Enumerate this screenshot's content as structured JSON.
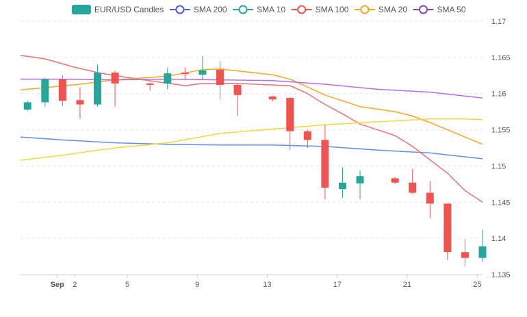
{
  "chart_data": {
    "type": "candlestick",
    "title": "",
    "xlabel": "",
    "ylabel": "",
    "ylim": [
      1.135,
      1.17
    ],
    "y_ticks": [
      "1.17",
      "1.165",
      "1.16",
      "1.155",
      "1.15",
      "1.145",
      "1.14",
      "1.135"
    ],
    "y_tick_values": [
      1.17,
      1.165,
      1.16,
      1.155,
      1.15,
      1.145,
      1.14,
      1.135
    ],
    "x_ticks": [
      {
        "label": "Sep",
        "day": 1,
        "bold": true
      },
      {
        "label": "2",
        "day": 2,
        "bold": false
      },
      {
        "label": "5",
        "day": 5,
        "bold": false
      },
      {
        "label": "9",
        "day": 9,
        "bold": false
      },
      {
        "label": "13",
        "day": 13,
        "bold": false
      },
      {
        "label": "17",
        "day": 17,
        "bold": false
      },
      {
        "label": "21",
        "day": 21,
        "bold": false
      },
      {
        "label": "25",
        "day": 25,
        "bold": false
      }
    ],
    "x_range_days": [
      -1.1,
      25.3
    ],
    "grid": "horizontal-dashed",
    "legend_position": "top",
    "colors": {
      "up": "#26a69a",
      "down": "#ef5350",
      "sma200": "#5b8ff0",
      "sma10": "#f08080",
      "sma100": "#e91e63",
      "sma20": "#f5a623",
      "sma50": "#b36bf5"
    },
    "legend": [
      {
        "key": "candles",
        "label": "EUR/USD Candles",
        "color": "#26a69a",
        "marker": "box"
      },
      {
        "key": "sma200",
        "label": "SMA 200",
        "color": "#4a5de8",
        "marker": "circle"
      },
      {
        "key": "sma10",
        "label": "SMA 10",
        "color": "#26a69a",
        "marker": "circle"
      },
      {
        "key": "sma100",
        "label": "SMA 100",
        "color": "#ef5350",
        "marker": "circle"
      },
      {
        "key": "sma20",
        "label": "SMA 20",
        "color": "#f5a623",
        "marker": "circle"
      },
      {
        "key": "sma50",
        "label": "SMA 50",
        "color": "#8e44ad",
        "marker": "circle"
      }
    ],
    "candles": [
      {
        "day": -0.7,
        "open": 1.1578,
        "high": 1.159,
        "low": 1.1576,
        "close": 1.1588
      },
      {
        "day": 0.3,
        "open": 1.1588,
        "high": 1.1622,
        "low": 1.1582,
        "close": 1.162
      },
      {
        "day": 1.3,
        "open": 1.162,
        "high": 1.1625,
        "low": 1.1583,
        "close": 1.159
      },
      {
        "day": 2.3,
        "open": 1.1591,
        "high": 1.1609,
        "low": 1.1565,
        "close": 1.1585
      },
      {
        "day": 3.3,
        "open": 1.1585,
        "high": 1.164,
        "low": 1.1582,
        "close": 1.1629
      },
      {
        "day": 4.3,
        "open": 1.1629,
        "high": 1.1632,
        "low": 1.1582,
        "close": 1.1614
      },
      {
        "day": 6.3,
        "open": 1.1614,
        "high": 1.1615,
        "low": 1.1604,
        "close": 1.1612
      },
      {
        "day": 7.3,
        "open": 1.1614,
        "high": 1.1636,
        "low": 1.1606,
        "close": 1.1628
      },
      {
        "day": 8.3,
        "open": 1.1629,
        "high": 1.1636,
        "low": 1.1619,
        "close": 1.1627
      },
      {
        "day": 9.3,
        "open": 1.1626,
        "high": 1.1652,
        "low": 1.162,
        "close": 1.1632
      },
      {
        "day": 10.3,
        "open": 1.1633,
        "high": 1.1645,
        "low": 1.1592,
        "close": 1.1612
      },
      {
        "day": 11.3,
        "open": 1.1612,
        "high": 1.1614,
        "low": 1.1569,
        "close": 1.1598
      },
      {
        "day": 13.3,
        "open": 1.1596,
        "high": 1.1597,
        "low": 1.1589,
        "close": 1.1592
      },
      {
        "day": 14.3,
        "open": 1.1594,
        "high": 1.1595,
        "low": 1.1522,
        "close": 1.1548
      },
      {
        "day": 15.3,
        "open": 1.1548,
        "high": 1.155,
        "low": 1.1525,
        "close": 1.1536
      },
      {
        "day": 16.3,
        "open": 1.1536,
        "high": 1.1557,
        "low": 1.1454,
        "close": 1.147
      },
      {
        "day": 17.3,
        "open": 1.1468,
        "high": 1.1498,
        "low": 1.1456,
        "close": 1.1477
      },
      {
        "day": 18.3,
        "open": 1.1476,
        "high": 1.1494,
        "low": 1.1454,
        "close": 1.1486
      },
      {
        "day": 20.3,
        "open": 1.1483,
        "high": 1.1485,
        "low": 1.1475,
        "close": 1.1477
      },
      {
        "day": 21.3,
        "open": 1.1477,
        "high": 1.1496,
        "low": 1.1461,
        "close": 1.1463
      },
      {
        "day": 22.3,
        "open": 1.1463,
        "high": 1.1479,
        "low": 1.1428,
        "close": 1.1448
      },
      {
        "day": 23.3,
        "open": 1.1448,
        "high": 1.1448,
        "low": 1.137,
        "close": 1.1381
      },
      {
        "day": 24.3,
        "open": 1.1381,
        "high": 1.1399,
        "low": 1.1361,
        "close": 1.1373
      },
      {
        "day": 25.3,
        "open": 1.1373,
        "high": 1.1412,
        "low": 1.1368,
        "close": 1.1389
      }
    ],
    "series": [
      {
        "key": "sma200",
        "color": "#5b8ff0",
        "x": [
          -1.1,
          1.3,
          4.3,
          7.3,
          10.3,
          13.3,
          16.3,
          19.3,
          22.3,
          25.3
        ],
        "values": [
          1.154,
          1.1536,
          1.1532,
          1.153,
          1.1529,
          1.1529,
          1.1527,
          1.1522,
          1.1518,
          1.151
        ]
      },
      {
        "key": "sma100",
        "color": "#f07070",
        "x": [
          -1.1,
          0.3,
          1.9,
          3.5,
          5.9,
          8.3,
          9.3,
          11.3,
          14.3,
          15.3,
          16.3,
          17.3,
          18.3,
          20.3,
          21.3,
          23.3,
          24.3,
          25.3
        ],
        "values": [
          1.1653,
          1.1648,
          1.1637,
          1.1628,
          1.1619,
          1.1611,
          1.1614,
          1.1614,
          1.1611,
          1.16,
          1.1585,
          1.1572,
          1.1558,
          1.1542,
          1.1527,
          1.149,
          1.1466,
          1.145
        ]
      },
      {
        "key": "sma20",
        "color": "#f5a623",
        "x": [
          -1.1,
          2.3,
          4.3,
          7.3,
          9.3,
          10.3,
          13.3,
          14.3,
          16.3,
          18.3,
          20.3,
          21.3,
          22.3,
          24.3,
          25.3
        ],
        "values": [
          1.1605,
          1.1613,
          1.1619,
          1.1624,
          1.1633,
          1.1634,
          1.1626,
          1.162,
          1.1598,
          1.1582,
          1.1575,
          1.1569,
          1.156,
          1.154,
          1.153
        ]
      },
      {
        "key": "sma50",
        "color": "#b36bf5",
        "x": [
          -1.1,
          1.3,
          4.3,
          7.3,
          10.3,
          13.3,
          16.3,
          19.3,
          22.3,
          25.3
        ],
        "values": [
          1.162,
          1.162,
          1.1619,
          1.162,
          1.1619,
          1.1618,
          1.1613,
          1.1606,
          1.1602,
          1.1594
        ]
      },
      {
        "key": "sma10",
        "color": "#f2d83a",
        "x": [
          -1.1,
          1.3,
          4.3,
          7.3,
          10.3,
          13.3,
          16.3,
          19.3,
          22.3,
          24.3,
          25.3
        ],
        "values": [
          1.1508,
          1.1515,
          1.1525,
          1.1532,
          1.1545,
          1.1551,
          1.1557,
          1.1561,
          1.1565,
          1.1565,
          1.1564
        ]
      }
    ]
  }
}
